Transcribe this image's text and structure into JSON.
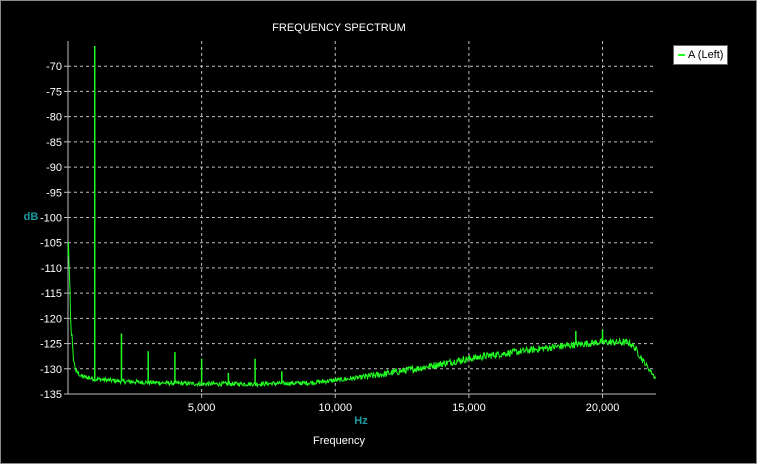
{
  "colors": {
    "series": "#22ff22",
    "grid": "#bdbdbd",
    "axis_label": "#1a9aa0",
    "background": "#000000"
  },
  "chart_data": {
    "type": "line",
    "title": "FREQUENCY SPECTRUM",
    "xlabel": "Hz",
    "ylabel": "dB",
    "xsub": "Frequency",
    "xlim": [
      0,
      22000
    ],
    "ylim": [
      -135,
      -65
    ],
    "xticks": [
      5000,
      10000,
      15000,
      20000
    ],
    "xtick_labels": [
      "5,000",
      "10,000",
      "15,000",
      "20,000"
    ],
    "yticks": [
      -70,
      -75,
      -80,
      -85,
      -90,
      -95,
      -100,
      -105,
      -110,
      -115,
      -120,
      -125,
      -130,
      -135
    ],
    "grid": true,
    "legend_position": "top-right",
    "series": [
      {
        "name": "A (Left)",
        "baseline": [
          [
            20,
            -107
          ],
          [
            100,
            -120
          ],
          [
            200,
            -128
          ],
          [
            300,
            -130.5
          ],
          [
            500,
            -131.5
          ],
          [
            1000,
            -132
          ],
          [
            2000,
            -132.5
          ],
          [
            3000,
            -132.7
          ],
          [
            5000,
            -133
          ],
          [
            7000,
            -133
          ],
          [
            9000,
            -132.8
          ],
          [
            10000,
            -132.3
          ],
          [
            11000,
            -131.7
          ],
          [
            12000,
            -130.9
          ],
          [
            13000,
            -130
          ],
          [
            14000,
            -129
          ],
          [
            15000,
            -128
          ],
          [
            16000,
            -127.2
          ],
          [
            17000,
            -126.5
          ],
          [
            18000,
            -125.8
          ],
          [
            19000,
            -125.2
          ],
          [
            20000,
            -124.7
          ],
          [
            21000,
            -124.8
          ],
          [
            21200,
            -125.8
          ],
          [
            21600,
            -129
          ],
          [
            22000,
            -132
          ]
        ],
        "peaks": [
          [
            1000,
            -66
          ],
          [
            2000,
            -123
          ],
          [
            3000,
            -126.5
          ],
          [
            4000,
            -126.7
          ],
          [
            5000,
            -128
          ],
          [
            6000,
            -130.8
          ],
          [
            7000,
            -128
          ],
          [
            8000,
            -130.5
          ],
          [
            19000,
            -122.5
          ],
          [
            20000,
            -122.3
          ]
        ]
      }
    ]
  }
}
